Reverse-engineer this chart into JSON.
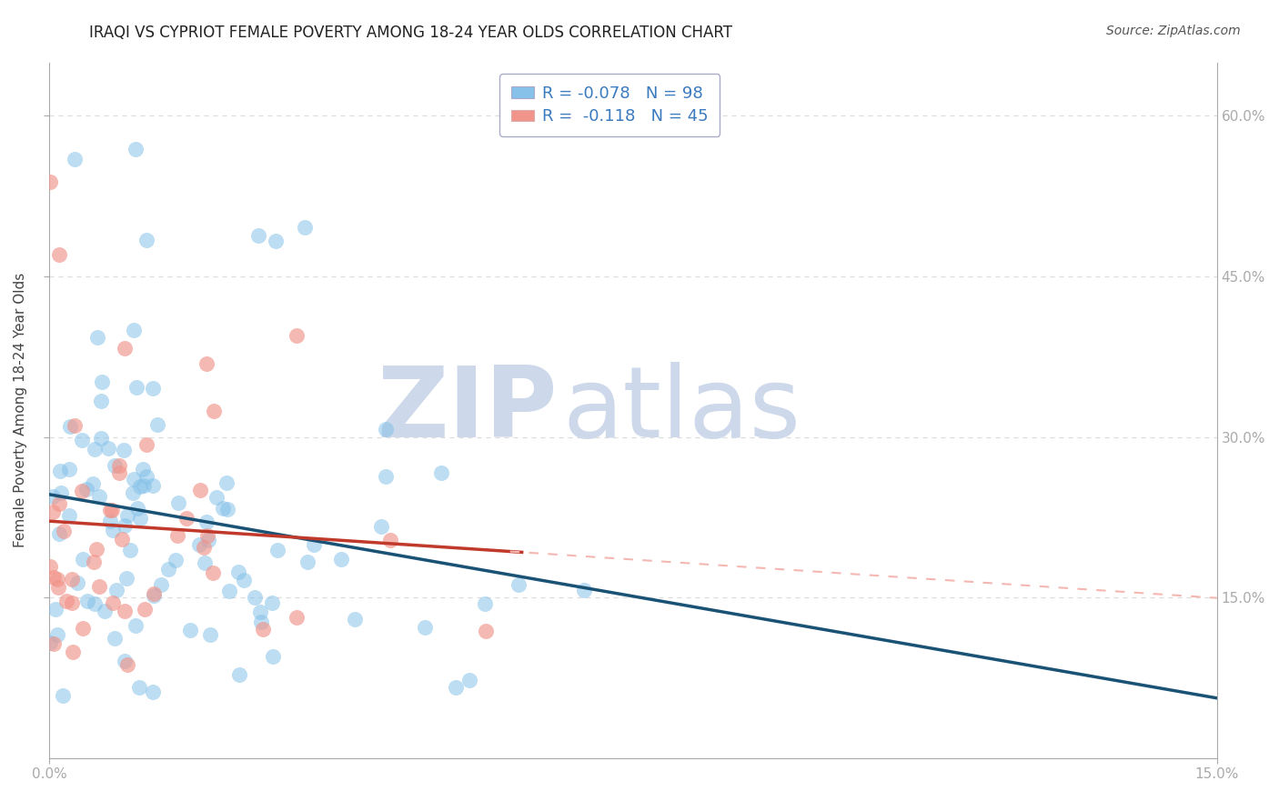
{
  "title": "IRAQI VS CYPRIOT FEMALE POVERTY AMONG 18-24 YEAR OLDS CORRELATION CHART",
  "source": "Source: ZipAtlas.com",
  "ylabel": "Female Poverty Among 18-24 Year Olds",
  "xlim": [
    0.0,
    0.15
  ],
  "ylim": [
    0.0,
    0.65
  ],
  "ytick_vals": [
    0.15,
    0.3,
    0.45,
    0.6
  ],
  "ytick_labels": [
    "15.0%",
    "30.0%",
    "45.0%",
    "60.0%"
  ],
  "xtick_vals": [
    0.0,
    0.15
  ],
  "xtick_labels": [
    "0.0%",
    "15.0%"
  ],
  "iraqis_R": -0.078,
  "iraqis_N": 98,
  "cypriots_R": -0.118,
  "cypriots_N": 45,
  "iraqi_color": "#85c1e9",
  "cypriot_color": "#f1948a",
  "trend_iraqi_color": "#1a5276",
  "trend_cypriot_color": "#c0392b",
  "trend_cypriot_ext_color": "#f5b7b1",
  "watermark_zip": "ZIP",
  "watermark_atlas": "atlas",
  "watermark_color": "#cdd8ea",
  "background_color": "#ffffff",
  "grid_color": "#dddddd",
  "tick_color": "#3a7abf",
  "spine_color": "#aaaaaa",
  "title_color": "#222222",
  "source_color": "#555555",
  "ylabel_color": "#444444",
  "legend_edge_color": "#aaaacc",
  "iraqi_seed": 7,
  "cypriot_seed": 99
}
